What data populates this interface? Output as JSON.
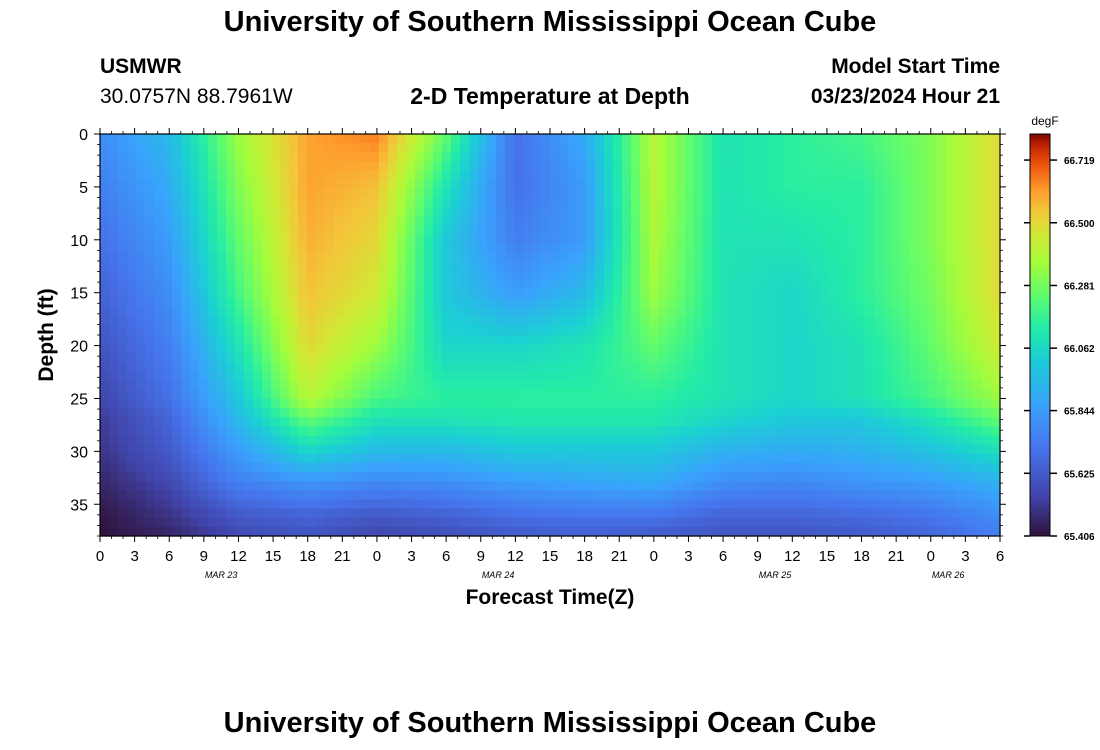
{
  "header": {
    "title": "University of Southern Mississippi Ocean Cube",
    "station_name": "USMWR",
    "station_coords": "30.0757N  88.7961W",
    "model_start_label": "Model Start Time",
    "model_start_value": "03/23/2024 Hour 21",
    "footer_title": "University of Southern Mississippi Ocean Cube"
  },
  "chart_data": {
    "type": "heatmap",
    "title": "2-D Temperature at Depth",
    "xlabel": "Forecast Time(Z)",
    "ylabel": "Depth (ft)",
    "x_hours": [
      0,
      6,
      12,
      18,
      24,
      30,
      36,
      42,
      48,
      54,
      60,
      66,
      72,
      78
    ],
    "x_tick_labels": [
      "0",
      "3",
      "6",
      "9",
      "12",
      "15",
      "18",
      "21",
      "0",
      "3",
      "6",
      "9",
      "12",
      "15",
      "18",
      "21",
      "0",
      "3",
      "6",
      "9",
      "12",
      "15",
      "18",
      "21",
      "0",
      "3",
      "6"
    ],
    "date_labels": [
      {
        "text": "MAR 23",
        "hour": 10.5
      },
      {
        "text": "MAR 24",
        "hour": 34.5
      },
      {
        "text": "MAR 25",
        "hour": 58.5
      },
      {
        "text": "MAR 26",
        "hour": 73.5
      }
    ],
    "xlim": [
      0,
      78
    ],
    "ylim": [
      0,
      38
    ],
    "y_ticks": [
      0,
      5,
      10,
      15,
      20,
      25,
      30,
      35
    ],
    "depths": [
      0,
      5,
      10,
      15,
      20,
      25,
      27,
      30,
      33,
      36,
      38
    ],
    "values": [
      [
        65.8,
        65.95,
        66.35,
        66.6,
        66.65,
        66.25,
        65.7,
        65.9,
        66.4,
        66.1,
        66.15,
        66.2,
        66.3,
        66.5
      ],
      [
        65.75,
        65.9,
        66.3,
        66.6,
        66.55,
        66.1,
        65.7,
        65.85,
        66.4,
        66.1,
        66.15,
        66.15,
        66.3,
        66.5
      ],
      [
        65.7,
        65.85,
        66.25,
        66.58,
        66.5,
        66.0,
        65.75,
        65.85,
        66.38,
        66.1,
        66.1,
        66.15,
        66.3,
        66.5
      ],
      [
        65.65,
        65.8,
        66.2,
        66.55,
        66.45,
        66.0,
        65.85,
        65.95,
        66.35,
        66.1,
        66.05,
        66.15,
        66.28,
        66.5
      ],
      [
        65.6,
        65.75,
        66.1,
        66.5,
        66.35,
        66.05,
        66.05,
        66.1,
        66.25,
        66.1,
        66.05,
        66.1,
        66.25,
        66.45
      ],
      [
        65.55,
        65.7,
        66.0,
        66.4,
        66.2,
        66.15,
        66.15,
        66.15,
        66.15,
        66.1,
        66.05,
        66.1,
        66.2,
        66.35
      ],
      [
        65.52,
        65.66,
        65.95,
        66.25,
        66.1,
        66.1,
        66.12,
        66.12,
        66.12,
        66.05,
        66.0,
        66.0,
        66.1,
        66.25
      ],
      [
        65.5,
        65.62,
        65.85,
        66.05,
        65.95,
        65.95,
        66.0,
        66.0,
        66.0,
        65.92,
        65.9,
        65.92,
        65.98,
        66.08
      ],
      [
        65.46,
        65.56,
        65.75,
        65.82,
        65.78,
        65.8,
        65.85,
        65.88,
        65.9,
        65.8,
        65.78,
        65.82,
        65.85,
        65.92
      ],
      [
        65.42,
        65.5,
        65.62,
        65.66,
        65.62,
        65.65,
        65.7,
        65.72,
        65.72,
        65.66,
        65.66,
        65.68,
        65.72,
        65.8
      ],
      [
        65.41,
        65.46,
        65.56,
        65.6,
        65.55,
        65.58,
        65.62,
        65.64,
        65.62,
        65.6,
        65.6,
        65.62,
        65.66,
        65.75
      ]
    ],
    "colorbar": {
      "unit": "degF",
      "min": 65.406,
      "max": 66.81,
      "tick_labels": [
        "66.719",
        "66.500",
        "66.281",
        "66.062",
        "65.844",
        "65.625",
        "65.406"
      ]
    }
  }
}
